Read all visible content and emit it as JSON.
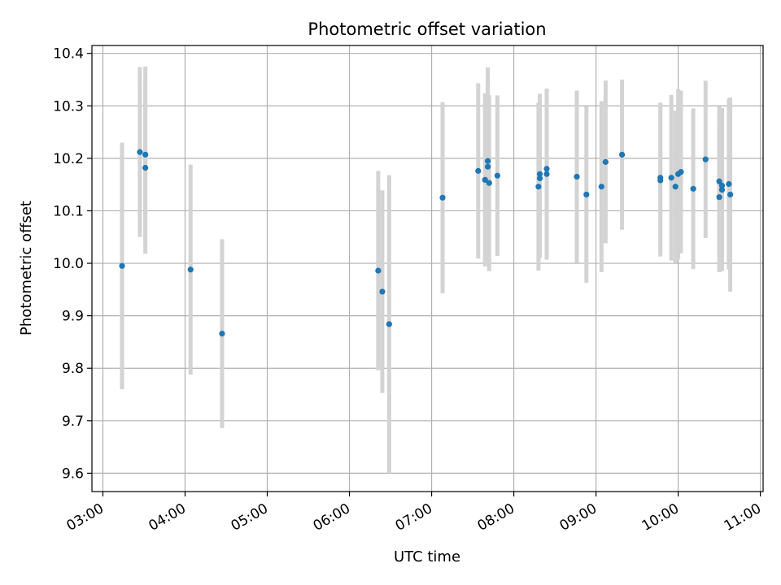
{
  "chart_data": {
    "type": "scatter",
    "title": "Photometric offset variation",
    "xlabel": "UTC time",
    "ylabel": "Photometric offset",
    "grid": true,
    "x_ticks": [
      "03:00",
      "04:00",
      "05:00",
      "06:00",
      "07:00",
      "08:00",
      "09:00",
      "10:00",
      "11:00"
    ],
    "y_ticks": [
      "9.6",
      "9.7",
      "9.8",
      "9.9",
      "10.0",
      "10.1",
      "10.2",
      "10.3",
      "10.4"
    ],
    "xlim": [
      "02:52",
      "11:02"
    ],
    "ylim": [
      9.565,
      10.415
    ],
    "colors": {
      "point": "#1f77b4",
      "errorbar": "#d3d3d3",
      "grid": "#b0b0b0"
    },
    "points": [
      {
        "x": "03:14",
        "y": 9.995,
        "yerr": 0.235
      },
      {
        "x": "03:27",
        "y": 10.212,
        "yerr": 0.162
      },
      {
        "x": "03:31",
        "y": 10.207,
        "yerr": 0.168
      },
      {
        "x": "03:31",
        "y": 10.182,
        "yerr": 0.164
      },
      {
        "x": "04:04",
        "y": 9.988,
        "yerr": 0.2
      },
      {
        "x": "04:27",
        "y": 9.866,
        "yerr": 0.18
      },
      {
        "x": "06:21",
        "y": 9.986,
        "yerr": 0.19
      },
      {
        "x": "06:24",
        "y": 9.946,
        "yerr": 0.193
      },
      {
        "x": "06:29",
        "y": 9.884,
        "yerr": 0.284
      },
      {
        "x": "07:08",
        "y": 10.125,
        "yerr": 0.182
      },
      {
        "x": "07:34",
        "y": 10.176,
        "yerr": 0.167
      },
      {
        "x": "07:39",
        "y": 10.159,
        "yerr": 0.165
      },
      {
        "x": "07:41",
        "y": 10.184,
        "yerr": 0.178
      },
      {
        "x": "07:41",
        "y": 10.195,
        "yerr": 0.178
      },
      {
        "x": "07:42",
        "y": 10.153,
        "yerr": 0.168
      },
      {
        "x": "07:48",
        "y": 10.167,
        "yerr": 0.153
      },
      {
        "x": "08:18",
        "y": 10.146,
        "yerr": 0.16
      },
      {
        "x": "08:19",
        "y": 10.17,
        "yerr": 0.153
      },
      {
        "x": "08:19",
        "y": 10.162,
        "yerr": 0.152
      },
      {
        "x": "08:24",
        "y": 10.17,
        "yerr": 0.163
      },
      {
        "x": "08:24",
        "y": 10.18,
        "yerr": 0.152
      },
      {
        "x": "08:46",
        "y": 10.165,
        "yerr": 0.164
      },
      {
        "x": "08:53",
        "y": 10.131,
        "yerr": 0.168
      },
      {
        "x": "09:04",
        "y": 10.146,
        "yerr": 0.163
      },
      {
        "x": "09:07",
        "y": 10.193,
        "yerr": 0.155
      },
      {
        "x": "09:19",
        "y": 10.207,
        "yerr": 0.143
      },
      {
        "x": "09:47",
        "y": 10.163,
        "yerr": 0.143
      },
      {
        "x": "09:47",
        "y": 10.158,
        "yerr": 0.145
      },
      {
        "x": "09:55",
        "y": 10.163,
        "yerr": 0.158
      },
      {
        "x": "09:58",
        "y": 10.146,
        "yerr": 0.145
      },
      {
        "x": "10:00",
        "y": 10.17,
        "yerr": 0.162
      },
      {
        "x": "10:02",
        "y": 10.174,
        "yerr": 0.155
      },
      {
        "x": "10:11",
        "y": 10.142,
        "yerr": 0.153
      },
      {
        "x": "10:20",
        "y": 10.198,
        "yerr": 0.15
      },
      {
        "x": "10:30",
        "y": 10.156,
        "yerr": 0.143
      },
      {
        "x": "10:30",
        "y": 10.126,
        "yerr": 0.143
      },
      {
        "x": "10:32",
        "y": 10.148,
        "yerr": 0.148
      },
      {
        "x": "10:32",
        "y": 10.14,
        "yerr": 0.155
      },
      {
        "x": "10:37",
        "y": 10.151,
        "yerr": 0.163
      },
      {
        "x": "10:38",
        "y": 10.131,
        "yerr": 0.185
      }
    ]
  }
}
